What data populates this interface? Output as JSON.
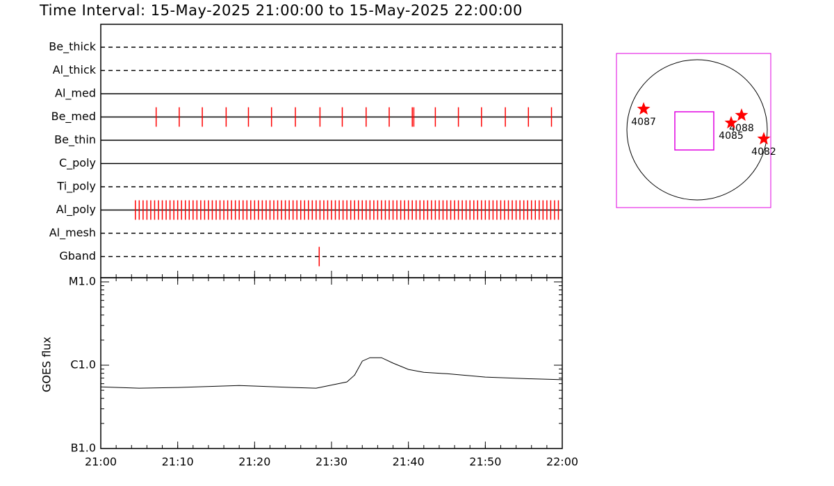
{
  "chart_data": [
    {
      "type": "timeline",
      "title": "Time Interval: 15-May-2025 21:00:00 to 15-May-2025 22:00:00",
      "xlim": [
        0,
        60
      ],
      "series": [
        {
          "name": "Be_thick",
          "style": "dashed",
          "color": "#ff0000",
          "values": []
        },
        {
          "name": "Al_thick",
          "style": "dashed",
          "color": "#ff0000",
          "values": []
        },
        {
          "name": "Al_med",
          "style": "solid",
          "color": "#ff0000",
          "values": []
        },
        {
          "name": "Be_med",
          "style": "solid",
          "color": "#ff0000",
          "values": [
            7.2,
            10.2,
            13.2,
            16.3,
            19.2,
            22.2,
            25.3,
            28.5,
            31.4,
            34.5,
            37.5,
            40.5,
            40.7,
            43.5,
            46.5,
            49.5,
            52.6,
            55.6,
            58.6
          ]
        },
        {
          "name": "Be_thin",
          "style": "solid",
          "color": "#ff0000",
          "values": []
        },
        {
          "name": "C_poly",
          "style": "solid",
          "color": "#ff0000",
          "values": []
        },
        {
          "name": "Ti_poly",
          "style": "dashed",
          "color": "#ff0000",
          "values": []
        },
        {
          "name": "Al_poly",
          "style": "solid",
          "color": "#ff0000",
          "values": [
            4.5,
            5,
            5.5,
            6,
            6.5,
            7,
            7.5,
            8,
            8.5,
            9,
            9.5,
            10,
            10.5,
            11,
            11.5,
            12,
            12.5,
            13,
            13.5,
            14,
            14.5,
            15,
            15.5,
            16,
            16.5,
            17,
            17.5,
            18,
            18.5,
            19,
            19.5,
            20,
            20.5,
            21,
            21.5,
            22,
            22.5,
            23,
            23.5,
            24,
            24.5,
            25,
            25.5,
            26,
            26.5,
            27,
            27.5,
            28,
            28.5,
            29,
            29.5,
            30,
            30.5,
            31,
            31.5,
            32,
            32.5,
            33,
            33.5,
            34,
            34.5,
            35,
            35.5,
            36,
            36.5,
            37,
            37.5,
            38,
            38.5,
            39,
            39.5,
            40,
            40.5,
            41,
            41.5,
            42,
            42.5,
            43,
            43.5,
            44,
            44.5,
            45,
            45.5,
            46,
            46.5,
            47,
            47.5,
            48,
            48.5,
            49,
            49.5,
            50,
            50.5,
            51,
            51.5,
            52,
            52.5,
            53,
            53.5,
            54,
            54.5,
            55,
            55.5,
            56,
            56.5,
            57,
            57.5,
            58,
            58.5,
            59,
            59.5
          ]
        },
        {
          "name": "Al_mesh",
          "style": "dashed",
          "color": "#ff0000",
          "values": []
        },
        {
          "name": "Gband",
          "style": "dashed",
          "color": "#ff0000",
          "values": [
            28.4
          ]
        }
      ]
    },
    {
      "type": "line",
      "ylabel": "GOES flux",
      "log": true,
      "color": "#000000",
      "xlim": [
        0,
        60
      ],
      "xticks": [
        {
          "value": 0,
          "label": "21:00"
        },
        {
          "value": 10,
          "label": "21:10"
        },
        {
          "value": 20,
          "label": "21:20"
        },
        {
          "value": 30,
          "label": "21:30"
        },
        {
          "value": 40,
          "label": "21:40"
        },
        {
          "value": 50,
          "label": "21:50"
        },
        {
          "value": 60,
          "label": "22:00"
        }
      ],
      "ylim": [
        1e-07,
        1e-05
      ],
      "yticks": [
        {
          "value": 1e-07,
          "label": "B1.0"
        },
        {
          "value": 1e-06,
          "label": "C1.0"
        },
        {
          "value": 1e-05,
          "label": "M1.0"
        }
      ],
      "x": [
        0,
        5,
        10,
        18,
        25,
        28,
        32,
        33,
        34,
        35,
        36.5,
        38,
        40,
        42,
        45,
        50,
        55,
        60
      ],
      "values": [
        5.5e-07,
        5.3e-07,
        5.4e-07,
        5.7e-07,
        5.4e-07,
        5.3e-07,
        6.3e-07,
        7.6e-07,
        1.12e-06,
        1.23e-06,
        1.23e-06,
        1.06e-06,
        8.9e-07,
        8.2e-07,
        7.9e-07,
        7.2e-07,
        6.9e-07,
        6.7e-07
      ]
    },
    {
      "type": "scatter",
      "color": "#ff0000",
      "xlim": [
        -1065,
        1065
      ],
      "ylim": [
        -1065,
        1065
      ],
      "labels": [
        "4087",
        "4088",
        "4085",
        "4082"
      ],
      "x": [
        -690,
        662,
        518,
        969
      ],
      "values": [
        297,
        211,
        106,
        -115
      ]
    }
  ]
}
